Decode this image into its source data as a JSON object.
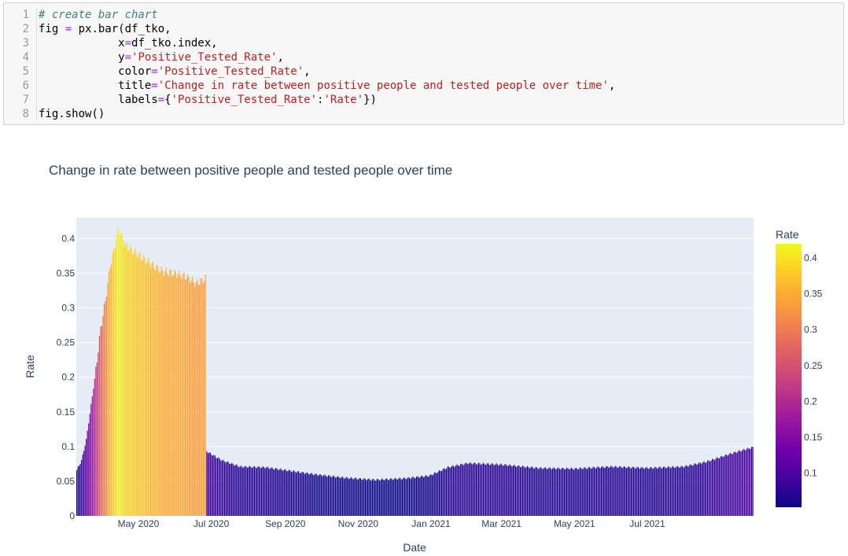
{
  "code_cell": {
    "line_numbers": [
      "1",
      "2",
      "3",
      "4",
      "5",
      "6",
      "7",
      "8"
    ],
    "lines": [
      [
        {
          "t": "# create bar chart",
          "c": "cm"
        }
      ],
      [
        {
          "t": "fig ",
          "c": ""
        },
        {
          "t": "=",
          "c": "eq"
        },
        {
          "t": " px.bar(df_tko,",
          "c": ""
        }
      ],
      [
        {
          "t": "            x",
          "c": ""
        },
        {
          "t": "=",
          "c": "eq"
        },
        {
          "t": "df_tko.index,",
          "c": ""
        }
      ],
      [
        {
          "t": "            y",
          "c": ""
        },
        {
          "t": "=",
          "c": "eq"
        },
        {
          "t": "'Positive_Tested_Rate'",
          "c": "st"
        },
        {
          "t": ",",
          "c": ""
        }
      ],
      [
        {
          "t": "            color",
          "c": ""
        },
        {
          "t": "=",
          "c": "eq"
        },
        {
          "t": "'Positive_Tested_Rate'",
          "c": "st"
        },
        {
          "t": ",",
          "c": ""
        }
      ],
      [
        {
          "t": "            title",
          "c": ""
        },
        {
          "t": "=",
          "c": "eq"
        },
        {
          "t": "'Change in rate between positive people and tested people over time'",
          "c": "st"
        },
        {
          "t": ",",
          "c": ""
        }
      ],
      [
        {
          "t": "            labels",
          "c": ""
        },
        {
          "t": "=",
          "c": "eq"
        },
        {
          "t": "{",
          "c": ""
        },
        {
          "t": "'Positive_Tested_Rate'",
          "c": "st"
        },
        {
          "t": ":",
          "c": ""
        },
        {
          "t": "'Rate'",
          "c": "st"
        },
        {
          "t": "})",
          "c": ""
        }
      ],
      [
        {
          "t": "fig.show()",
          "c": ""
        }
      ]
    ]
  },
  "chart_data": {
    "type": "bar",
    "title": "Change in rate between positive people and tested people over time",
    "xlabel": "Date",
    "ylabel": "Rate",
    "x_range": [
      "2020-03-10",
      "2021-09-28"
    ],
    "ylim": [
      0,
      0.43
    ],
    "y_ticks": [
      0,
      0.05,
      0.1,
      0.15,
      0.2,
      0.25,
      0.3,
      0.35,
      0.4
    ],
    "y_tick_labels": [
      "0",
      "0.05",
      "0.1",
      "0.15",
      "0.2",
      "0.25",
      "0.3",
      "0.35",
      "0.4"
    ],
    "x_ticks": [
      "2020-05-01",
      "2020-07-01",
      "2020-09-01",
      "2020-11-01",
      "2021-01-01",
      "2021-03-01",
      "2021-05-01",
      "2021-07-01"
    ],
    "x_tick_labels": [
      "May 2020",
      "Jul 2020",
      "Sep 2020",
      "Nov 2020",
      "Jan 2021",
      "Mar 2021",
      "May 2021",
      "Jul 2021"
    ],
    "grid": true,
    "series_keyframes": [
      {
        "date": "2020-03-10",
        "value": 0.066
      },
      {
        "date": "2020-03-14",
        "value": 0.08
      },
      {
        "date": "2020-03-18",
        "value": 0.11
      },
      {
        "date": "2020-03-22",
        "value": 0.16
      },
      {
        "date": "2020-03-26",
        "value": 0.21
      },
      {
        "date": "2020-03-30",
        "value": 0.27
      },
      {
        "date": "2020-04-03",
        "value": 0.31
      },
      {
        "date": "2020-04-07",
        "value": 0.36
      },
      {
        "date": "2020-04-11",
        "value": 0.39
      },
      {
        "date": "2020-04-14",
        "value": 0.415
      },
      {
        "date": "2020-04-20",
        "value": 0.39
      },
      {
        "date": "2020-04-28",
        "value": 0.38
      },
      {
        "date": "2020-05-06",
        "value": 0.37
      },
      {
        "date": "2020-05-14",
        "value": 0.36
      },
      {
        "date": "2020-05-22",
        "value": 0.352
      },
      {
        "date": "2020-06-01",
        "value": 0.35
      },
      {
        "date": "2020-06-10",
        "value": 0.345
      },
      {
        "date": "2020-06-18",
        "value": 0.335
      },
      {
        "date": "2020-06-26",
        "value": 0.342
      },
      {
        "date": "2020-06-27",
        "value": 0.093
      },
      {
        "date": "2020-07-10",
        "value": 0.08
      },
      {
        "date": "2020-07-25",
        "value": 0.071
      },
      {
        "date": "2020-08-15",
        "value": 0.07
      },
      {
        "date": "2020-09-01",
        "value": 0.066
      },
      {
        "date": "2020-09-25",
        "value": 0.06
      },
      {
        "date": "2020-10-20",
        "value": 0.055
      },
      {
        "date": "2020-11-15",
        "value": 0.052
      },
      {
        "date": "2020-12-10",
        "value": 0.054
      },
      {
        "date": "2020-12-31",
        "value": 0.058
      },
      {
        "date": "2021-01-15",
        "value": 0.07
      },
      {
        "date": "2021-02-01",
        "value": 0.076
      },
      {
        "date": "2021-03-01",
        "value": 0.074
      },
      {
        "date": "2021-04-01",
        "value": 0.069
      },
      {
        "date": "2021-05-01",
        "value": 0.068
      },
      {
        "date": "2021-06-01",
        "value": 0.071
      },
      {
        "date": "2021-07-01",
        "value": 0.069
      },
      {
        "date": "2021-08-01",
        "value": 0.071
      },
      {
        "date": "2021-08-20",
        "value": 0.078
      },
      {
        "date": "2021-09-10",
        "value": 0.09
      },
      {
        "date": "2021-09-28",
        "value": 0.099
      }
    ],
    "colorbar": {
      "title": "Rate",
      "range": [
        0.052,
        0.42
      ],
      "ticks": [
        0.1,
        0.15,
        0.2,
        0.25,
        0.3,
        0.35,
        0.4
      ],
      "tick_labels": [
        "0.1",
        "0.15",
        "0.2",
        "0.25",
        "0.3",
        "0.35",
        "0.4"
      ],
      "colorscale": [
        "#0d0887",
        "#46039f",
        "#7201a8",
        "#9c179e",
        "#bd3786",
        "#d8576b",
        "#ed7953",
        "#fb9f3a",
        "#fdca26",
        "#f0f921"
      ]
    },
    "colors": {
      "plot_bg": "#e5ecf6",
      "grid": "#ffffff",
      "text": "#2a3f5f"
    }
  }
}
